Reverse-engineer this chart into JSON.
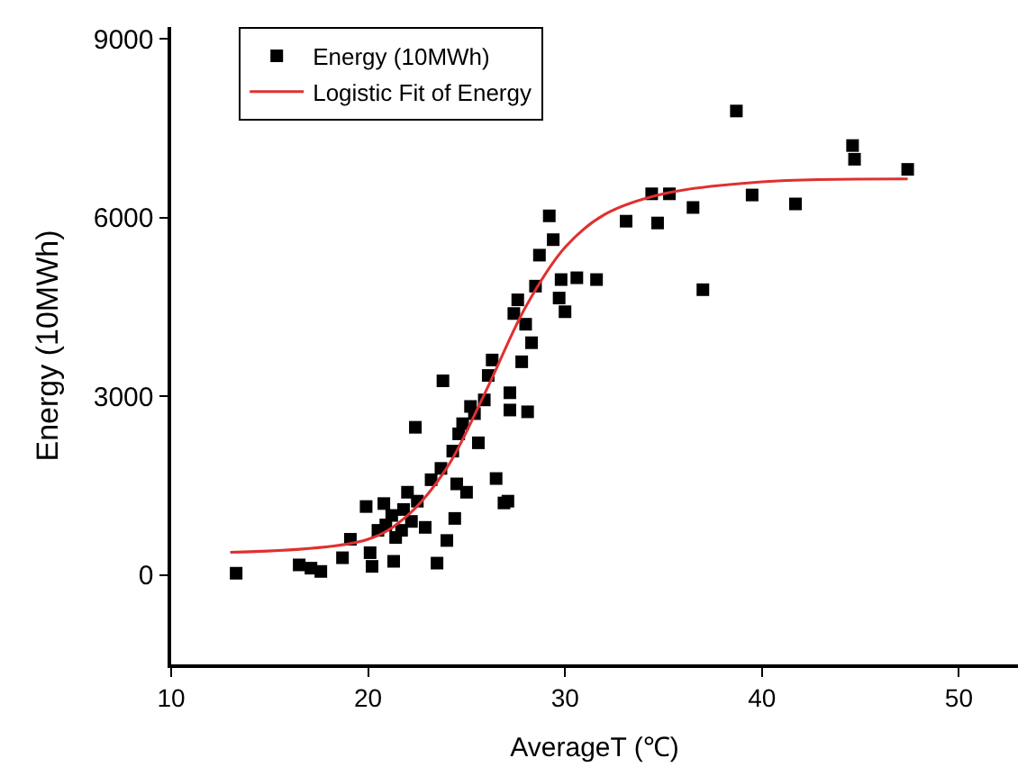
{
  "chart_data": {
    "type": "scatter",
    "xlabel": "AverageT (℃)",
    "ylabel": "Energy (10MWh)",
    "xlim": [
      10,
      53
    ],
    "ylim": [
      -1500,
      9200
    ],
    "xticks": [
      10,
      20,
      30,
      40,
      50
    ],
    "yticks": [
      0,
      3000,
      6000,
      9000
    ],
    "legend": "top left",
    "series": [
      {
        "name": "Energy (10MWh)",
        "type": "scatter",
        "marker": "square",
        "color": "#000000",
        "x": [
          13.3,
          16.5,
          17.1,
          17.6,
          18.7,
          19.1,
          19.9,
          20.1,
          20.2,
          20.5,
          20.9,
          20.8,
          21.2,
          21.3,
          21.4,
          21.7,
          21.8,
          22.0,
          22.2,
          22.4,
          22.5,
          22.9,
          23.2,
          23.5,
          23.7,
          23.8,
          24.0,
          24.3,
          24.4,
          24.5,
          24.6,
          24.8,
          25.0,
          25.2,
          25.4,
          25.6,
          25.9,
          26.1,
          26.3,
          26.5,
          26.9,
          27.1,
          27.2,
          27.2,
          27.4,
          27.6,
          27.8,
          28.0,
          28.1,
          28.3,
          28.5,
          28.7,
          29.2,
          29.4,
          29.7,
          29.8,
          30.0,
          30.6,
          31.6,
          33.1,
          34.4,
          34.7,
          35.3,
          36.5,
          37.0,
          38.7,
          39.5,
          41.7,
          44.6,
          44.7,
          47.4
        ],
        "values": [
          30,
          170,
          115,
          60,
          290,
          600,
          1150,
          375,
          145,
          750,
          840,
          1200,
          1000,
          230,
          630,
          750,
          1100,
          1390,
          900,
          2480,
          1240,
          800,
          1600,
          200,
          1790,
          3260,
          580,
          2080,
          950,
          1530,
          2370,
          2540,
          1390,
          2830,
          2710,
          2220,
          2940,
          3350,
          3610,
          1620,
          1210,
          1240,
          2770,
          3060,
          4390,
          4620,
          3580,
          4210,
          2740,
          3900,
          4850,
          5370,
          6030,
          5630,
          4650,
          4960,
          4420,
          4990,
          4960,
          5940,
          6400,
          5910,
          6400,
          6170,
          4790,
          7790,
          6380,
          6230,
          7210,
          6980,
          6810
        ]
      },
      {
        "name": "Logistic Fit of Energy",
        "type": "line",
        "marker": "none",
        "color": "#e03030",
        "x": [
          13,
          20,
          22,
          24,
          26,
          28,
          30,
          32,
          35,
          40,
          47.4
        ],
        "values": [
          380,
          600,
          1000,
          1800,
          3100,
          4500,
          5500,
          6050,
          6400,
          6600,
          6650
        ]
      }
    ]
  }
}
